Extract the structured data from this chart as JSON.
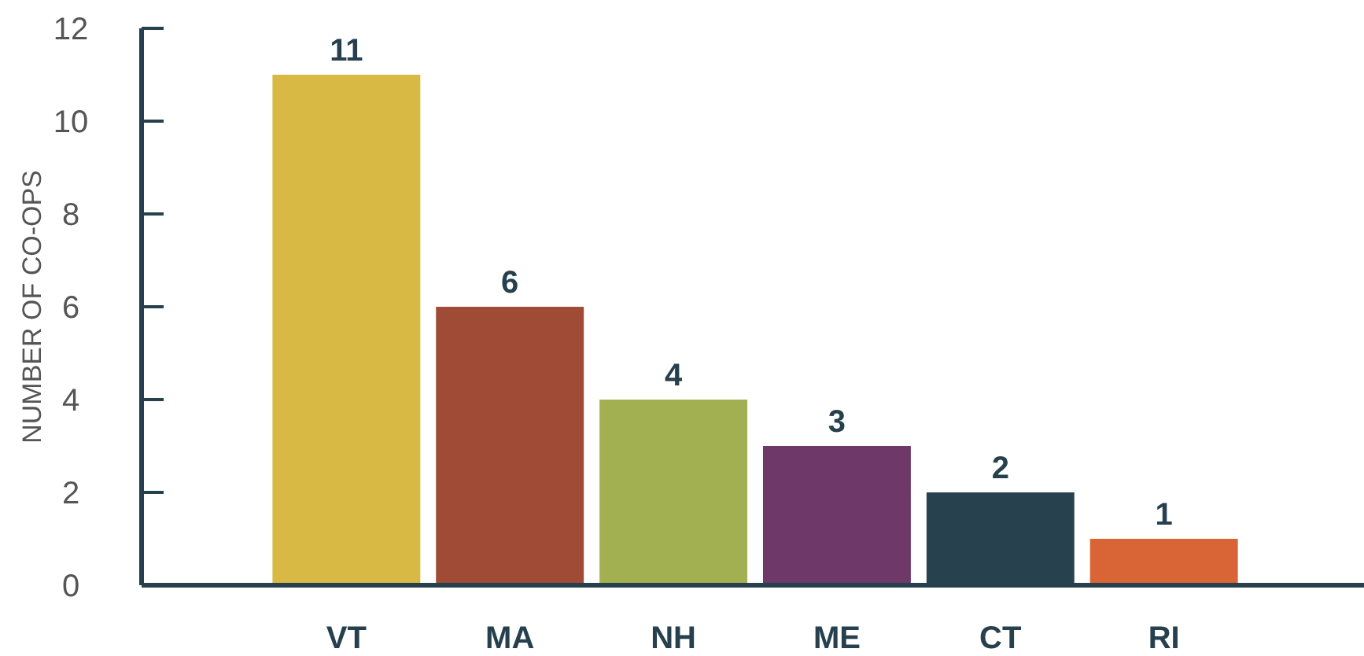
{
  "chart_data": {
    "type": "bar",
    "ylabel": "NUMBER OF CO-OPS",
    "categories": [
      "VT",
      "MA",
      "NH",
      "ME",
      "CT",
      "RI"
    ],
    "values": [
      11,
      6,
      4,
      3,
      2,
      1
    ],
    "colors": [
      "#d8b944",
      "#a04b36",
      "#a3b052",
      "#6e3869",
      "#27414f",
      "#d96436"
    ],
    "ylim": [
      0,
      12
    ],
    "yticks": [
      0,
      2,
      4,
      6,
      8,
      10,
      12
    ],
    "data_labels": true
  }
}
